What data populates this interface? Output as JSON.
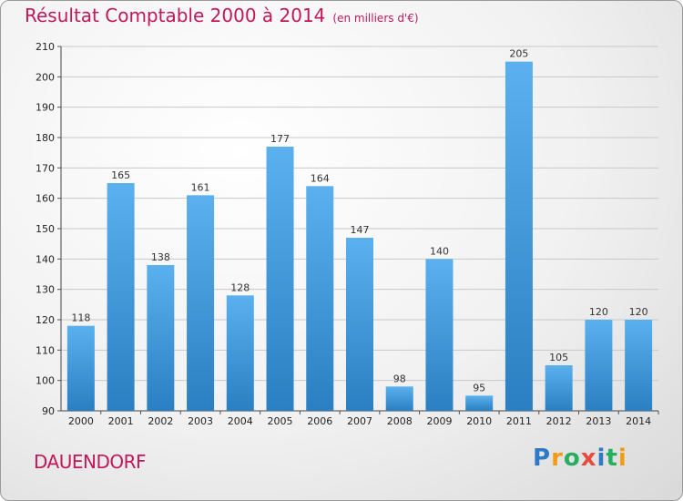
{
  "title": "Résultat Comptable 2000 à 2014",
  "subtitle": "(en milliers d'€)",
  "commune": "DAUENDORF",
  "logo": {
    "letters": [
      "P",
      "r",
      "o",
      "x",
      "i",
      "t",
      "i"
    ],
    "colors": [
      "#2e7ac9",
      "#f39c12",
      "#27ae60",
      "#e74c3c",
      "#2e7ac9",
      "#27ae60",
      "#f39c12"
    ]
  },
  "chart_data": {
    "type": "bar",
    "categories": [
      "2000",
      "2001",
      "2002",
      "2003",
      "2004",
      "2005",
      "2006",
      "2007",
      "2008",
      "2009",
      "2010",
      "2011",
      "2012",
      "2013",
      "2014"
    ],
    "values": [
      118,
      165,
      138,
      161,
      128,
      177,
      164,
      147,
      98,
      140,
      95,
      205,
      105,
      120,
      120
    ],
    "title": "Résultat Comptable 2000 à 2014",
    "xlabel": "",
    "ylabel": "",
    "ylim": [
      90,
      210
    ],
    "yticks": [
      90,
      100,
      110,
      120,
      130,
      140,
      150,
      160,
      170,
      180,
      190,
      200,
      210
    ],
    "grid": true,
    "bar_color": "#3d97dc"
  }
}
